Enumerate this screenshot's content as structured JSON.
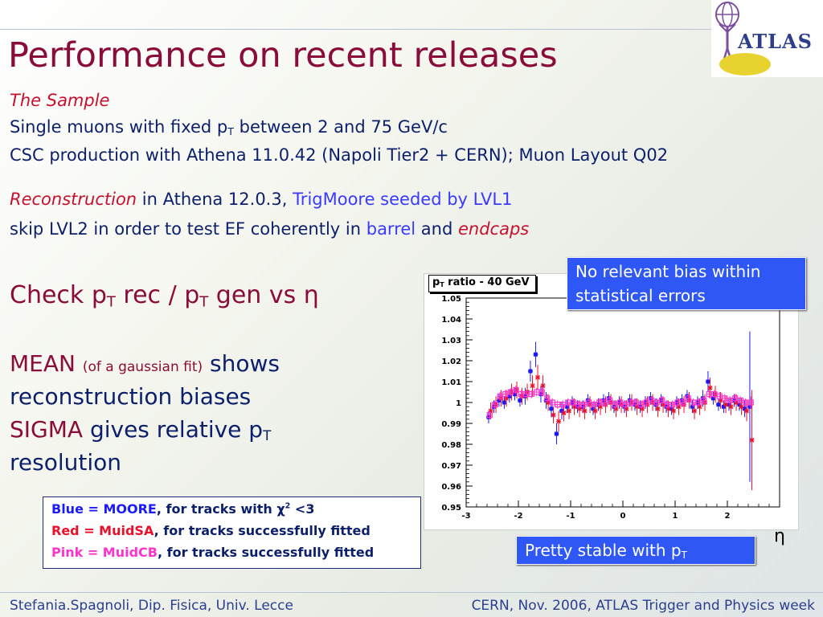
{
  "slide": {
    "title": "Performance on recent releases",
    "logo_text": "ATLAS",
    "sample_heading": "The Sample",
    "sample_line1_pre": "Single muons with fixed p",
    "sample_line1_sub": "T",
    "sample_line1_post": " between 2 and 75 GeV/c",
    "sample_line2": "CSC production with Athena 11.0.42 (Napoli Tier2 + CERN); Muon Layout Q02",
    "reco_label": "Reconstruction",
    "reco_mid": " in Athena 12.0.3, ",
    "reco_trig": "TrigMoore seeded by LVL1",
    "skip_pre": "skip LVL2 in order to test EF coherently in ",
    "skip_barrel": "barrel",
    "skip_and": " and ",
    "skip_endcaps": "endcaps",
    "check_pre": "Check p",
    "check_sub1": "T",
    "check_mid": " rec / p",
    "check_sub2": "T",
    "check_post": " gen vs ",
    "check_eta": "η",
    "mean_label": "MEAN",
    "mean_small": "(of a gaussian fit)",
    "mean_post": " shows",
    "reco_biases": "reconstruction biases",
    "sigma_label": "SIGMA",
    "sigma_post_pre": " gives relative p",
    "sigma_sub": "T",
    "resolution": "resolution"
  },
  "callouts": {
    "bias_line1": "No relevant bias within",
    "bias_line2": "statistical errors",
    "stable_pre": "Pretty stable with  p",
    "stable_sub": "T"
  },
  "legend": {
    "blue_pre": "Blue = ",
    "blue_name": "MOORE",
    "blue_post_pre": ", for tracks with ",
    "blue_chi": "χ",
    "blue_sup": "2",
    "blue_post": " <3",
    "red_pre": "Red  = ",
    "red_name": "MuidSA",
    "red_post": ", for tracks successfully fitted",
    "pink_pre": "Pink = ",
    "pink_name": "MuidCB",
    "pink_post": ", for tracks successfully fitted"
  },
  "footer": {
    "left": "Stefania.Spagnoli, Dip. Fisica, Univ. Lecce",
    "right": "CERN, Nov. 2006, ATLAS Trigger and Physics week"
  },
  "colors": {
    "title": "#8a0c3a",
    "text": "#0c1f6b",
    "callout_bg": "#2f57f5",
    "moore": "#1a1aff",
    "muidsa": "#e8102a",
    "muidcb": "#ff33cc"
  },
  "chart_data": {
    "type": "scatter",
    "title": "p_T ratio - 40 GeV",
    "title_main": "p",
    "title_sub": "T",
    "title_rest": " ratio - 40 GeV",
    "xlabel": "η",
    "ylabel": "",
    "xlim": [
      -3,
      3
    ],
    "ylim": [
      0.95,
      1.05
    ],
    "xticks": [
      -3,
      -2,
      -1,
      0,
      1,
      2
    ],
    "yticks": [
      0.95,
      0.96,
      0.97,
      0.98,
      0.99,
      1,
      1.01,
      1.02,
      1.03,
      1.04,
      1.05
    ],
    "ytick_labels": [
      "0.95",
      "0.96",
      "0.97",
      "0.98",
      "0.99",
      "1",
      "1.01",
      "1.02",
      "1.03",
      "1.04",
      "1.05"
    ],
    "grid": false,
    "x": [
      -2.55,
      -2.45,
      -2.35,
      -2.25,
      -2.15,
      -2.05,
      -1.95,
      -1.85,
      -1.75,
      -1.65,
      -1.55,
      -1.45,
      -1.35,
      -1.25,
      -1.15,
      -1.05,
      -0.95,
      -0.85,
      -0.75,
      -0.65,
      -0.55,
      -0.45,
      -0.35,
      -0.25,
      -0.15,
      -0.05,
      0.05,
      0.15,
      0.25,
      0.35,
      0.45,
      0.55,
      0.65,
      0.75,
      0.85,
      0.95,
      1.05,
      1.15,
      1.25,
      1.35,
      1.45,
      1.55,
      1.65,
      1.75,
      1.85,
      1.95,
      2.05,
      2.15,
      2.25,
      2.35,
      2.45
    ],
    "series": [
      {
        "name": "MOORE",
        "color": "#1a1aff",
        "marker": "square",
        "y": [
          0.993,
          0.998,
          1.001,
          1.0,
          1.003,
          1.004,
          1.001,
          1.003,
          1.015,
          1.023,
          1.004,
          1.001,
          0.997,
          0.985,
          0.996,
          0.998,
          1.0,
          0.998,
          0.998,
          1.001,
          0.997,
          0.999,
          1.001,
          1.002,
          0.998,
          1.0,
          0.998,
          1.001,
          0.999,
          0.998,
          1.0,
          1.002,
          0.999,
          1.001,
          0.998,
          0.997,
          1.0,
          1.001,
          1.003,
          0.998,
          1.0,
          1.002,
          1.01,
          1.002,
          0.999,
          0.998,
          0.999,
          1.001,
          0.999,
          0.997,
          0.998
        ],
        "err": [
          0.003,
          0.003,
          0.003,
          0.003,
          0.003,
          0.003,
          0.003,
          0.004,
          0.005,
          0.006,
          0.004,
          0.004,
          0.004,
          0.005,
          0.004,
          0.003,
          0.003,
          0.003,
          0.003,
          0.003,
          0.003,
          0.003,
          0.003,
          0.003,
          0.003,
          0.003,
          0.003,
          0.003,
          0.003,
          0.003,
          0.003,
          0.003,
          0.003,
          0.003,
          0.003,
          0.003,
          0.003,
          0.003,
          0.003,
          0.003,
          0.003,
          0.004,
          0.005,
          0.003,
          0.003,
          0.003,
          0.003,
          0.003,
          0.003,
          0.004,
          0.036
        ]
      },
      {
        "name": "MuidSA",
        "color": "#e8102a",
        "marker": "star",
        "y": [
          0.996,
          0.999,
          1.002,
          1.002,
          1.005,
          1.006,
          1.003,
          1.005,
          1.008,
          1.012,
          1.008,
          1.0,
          0.994,
          0.991,
          0.995,
          0.996,
          0.998,
          0.997,
          0.996,
          0.999,
          0.996,
          0.998,
          0.999,
          1.0,
          0.997,
          0.999,
          0.997,
          1.0,
          0.998,
          0.997,
          0.999,
          1.0,
          0.997,
          0.999,
          0.997,
          0.996,
          0.998,
          0.999,
          1.001,
          0.996,
          0.998,
          1.0,
          1.007,
          1.004,
          1.001,
          0.999,
          0.998,
          1.0,
          0.998,
          0.996,
          0.982
        ],
        "err": [
          0.004,
          0.004,
          0.004,
          0.004,
          0.004,
          0.004,
          0.004,
          0.004,
          0.005,
          0.006,
          0.005,
          0.004,
          0.004,
          0.005,
          0.004,
          0.004,
          0.004,
          0.004,
          0.004,
          0.004,
          0.004,
          0.004,
          0.004,
          0.004,
          0.004,
          0.004,
          0.004,
          0.004,
          0.004,
          0.004,
          0.004,
          0.004,
          0.004,
          0.004,
          0.004,
          0.004,
          0.004,
          0.004,
          0.004,
          0.004,
          0.004,
          0.004,
          0.005,
          0.004,
          0.004,
          0.004,
          0.004,
          0.004,
          0.004,
          0.005,
          0.024
        ]
      },
      {
        "name": "MuidCB",
        "color": "#ff33cc",
        "marker": "open-square",
        "y": [
          0.994,
          0.999,
          1.003,
          1.004,
          1.005,
          1.006,
          1.004,
          1.004,
          1.004,
          1.005,
          1.005,
          1.002,
          1.0,
          0.999,
          0.999,
          1.0,
          1.0,
          0.999,
          0.999,
          1.0,
          0.999,
          1.0,
          1.0,
          1.001,
          0.999,
          1.0,
          0.999,
          1.0,
          1.0,
          0.999,
          1.0,
          1.001,
          1.0,
          1.001,
          0.999,
          0.999,
          1.0,
          1.0,
          1.002,
          1.0,
          1.0,
          1.001,
          1.004,
          1.004,
          1.003,
          1.002,
          1.001,
          1.002,
          1.001,
          1.0,
          1.0
        ],
        "err": [
          0.002,
          0.002,
          0.002,
          0.002,
          0.002,
          0.002,
          0.002,
          0.002,
          0.002,
          0.002,
          0.002,
          0.002,
          0.002,
          0.002,
          0.002,
          0.002,
          0.002,
          0.002,
          0.002,
          0.002,
          0.002,
          0.002,
          0.002,
          0.002,
          0.002,
          0.002,
          0.002,
          0.002,
          0.002,
          0.002,
          0.002,
          0.002,
          0.002,
          0.002,
          0.002,
          0.002,
          0.002,
          0.002,
          0.002,
          0.002,
          0.002,
          0.002,
          0.002,
          0.002,
          0.002,
          0.002,
          0.002,
          0.002,
          0.002,
          0.002,
          0.003
        ]
      }
    ]
  }
}
